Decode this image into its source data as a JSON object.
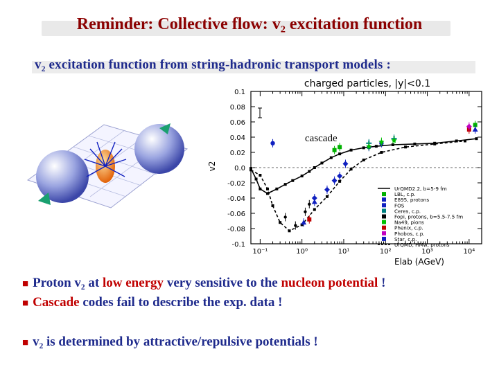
{
  "slide": {
    "title": "Reminder: Collective flow: v₂ excitation function",
    "subtitle": "v₂ excitation function from string-hadronic transport models :",
    "bullets": [
      {
        "parts": [
          "Proton v₂ at ",
          "low energy",
          " very sensitive to the ",
          "nucleon potential",
          " !"
        ]
      },
      {
        "parts": [
          "Cascade",
          " codes fail to describe the exp. data !"
        ]
      },
      {
        "parts": [
          "v₂ is determined by attractive/repulsive potentials !"
        ]
      }
    ],
    "annotation": "cascade"
  },
  "chart_data": {
    "type": "scatter",
    "title": "charged particles, |y|<0.1",
    "xlabel": "Elab (AGeV)",
    "ylabel": "v2",
    "xscale": "log",
    "xlim": [
      0.06,
      20000
    ],
    "ylim": [
      -0.1,
      0.1
    ],
    "x_ticks": [
      {
        "value": 0.1,
        "label": "10⁻¹"
      },
      {
        "value": 1,
        "label": "10⁰"
      },
      {
        "value": 10,
        "label": "10¹"
      },
      {
        "value": 100,
        "label": "10²"
      },
      {
        "value": 1000,
        "label": "10³"
      },
      {
        "value": 10000,
        "label": "10⁴"
      }
    ],
    "y_ticks": [
      0.1,
      0.08,
      0.06,
      0.04,
      0.02,
      0.0,
      -0.02,
      -0.04,
      -0.06,
      -0.08,
      -0.1
    ],
    "y_tick_labels": [
      "0.1",
      "0.08",
      "0.06",
      "0.04",
      "0.02",
      "0.0",
      "-0.02",
      "-0.04",
      "-0.06",
      "-0.08",
      "-0.1"
    ],
    "zero_line": true,
    "legend_position": "bottom-right",
    "series": [
      {
        "name": "UrQMD2.2, b=5-9 fm",
        "style": "line",
        "color": "#000000",
        "points": [
          [
            0.06,
            -0.001
          ],
          [
            0.08,
            -0.015
          ],
          [
            0.1,
            -0.028
          ],
          [
            0.15,
            -0.034
          ],
          [
            0.25,
            -0.028
          ],
          [
            0.4,
            -0.022
          ],
          [
            0.6,
            -0.017
          ],
          [
            1,
            -0.011
          ],
          [
            1.5,
            -0.005
          ],
          [
            2,
            0.0
          ],
          [
            3,
            0.006
          ],
          [
            5,
            0.013
          ],
          [
            8,
            0.018
          ],
          [
            15,
            0.023
          ],
          [
            30,
            0.026
          ],
          [
            60,
            0.028
          ],
          [
            150,
            0.03
          ],
          [
            500,
            0.031
          ],
          [
            1500,
            0.032
          ],
          [
            5000,
            0.035
          ],
          [
            15000,
            0.038
          ]
        ]
      },
      {
        "name": "LBL, c.p.",
        "color": "#00b000",
        "marker": "square",
        "points": [
          [
            6,
            0.023
          ],
          [
            8,
            0.027
          ],
          [
            14000,
            0.056
          ]
        ]
      },
      {
        "name": "E895, protons",
        "color": "#1020c0",
        "marker": "diamond",
        "points": [
          [
            2,
            -0.04
          ],
          [
            4,
            -0.029
          ],
          [
            6,
            -0.017
          ],
          [
            8,
            -0.011
          ],
          [
            11,
            0.005
          ]
        ]
      },
      {
        "name": "FOS",
        "color": "#1020c0",
        "marker": "circle",
        "points": [
          [
            0.2,
            0.032
          ],
          [
            40,
            0.027
          ],
          [
            80,
            0.032
          ]
        ]
      },
      {
        "name": "Ceres, c.p.",
        "color": "#008080",
        "marker": "plus",
        "points": [
          [
            40,
            0.032
          ],
          [
            160,
            0.038
          ]
        ]
      },
      {
        "name": "Fopi, protons, b=5.5-7.5 fm",
        "color": "#000000",
        "marker": "dot",
        "points": [
          [
            0.4,
            -0.065
          ],
          [
            0.7,
            -0.076
          ],
          [
            1.2,
            -0.058
          ],
          [
            1.5,
            -0.048
          ]
        ]
      },
      {
        "name": "Na49, pions",
        "color": "#00c000",
        "marker": "star",
        "points": [
          [
            40,
            0.028
          ],
          [
            80,
            0.034
          ],
          [
            160,
            0.036
          ]
        ]
      },
      {
        "name": "Phenix, c.p.",
        "color": "#c00000",
        "marker": "square",
        "points": [
          [
            1.5,
            -0.068
          ],
          [
            10000,
            0.05
          ]
        ]
      },
      {
        "name": "Phobos, c.p.",
        "color": "#c000c0",
        "marker": "diamond",
        "points": [
          [
            10000,
            0.054
          ]
        ]
      },
      {
        "name": "Star, c.p.",
        "color": "#1020c0",
        "marker": "triangle",
        "points": [
          [
            1.1,
            -0.072
          ],
          [
            2,
            -0.045
          ],
          [
            14000,
            0.05
          ]
        ]
      },
      {
        "name": "UrQMD, HMw, protons",
        "style": "dashed",
        "color": "#000000",
        "points": [
          [
            0.06,
            -0.003
          ],
          [
            0.1,
            -0.01
          ],
          [
            0.15,
            -0.028
          ],
          [
            0.2,
            -0.05
          ],
          [
            0.3,
            -0.072
          ],
          [
            0.5,
            -0.083
          ],
          [
            1,
            -0.075
          ],
          [
            2,
            -0.055
          ],
          [
            4,
            -0.038
          ],
          [
            8,
            -0.018
          ],
          [
            15,
            -0.002
          ],
          [
            30,
            0.01
          ],
          [
            80,
            0.02
          ],
          [
            300,
            0.027
          ],
          [
            1500,
            0.031
          ],
          [
            8000,
            0.035
          ]
        ]
      }
    ]
  }
}
